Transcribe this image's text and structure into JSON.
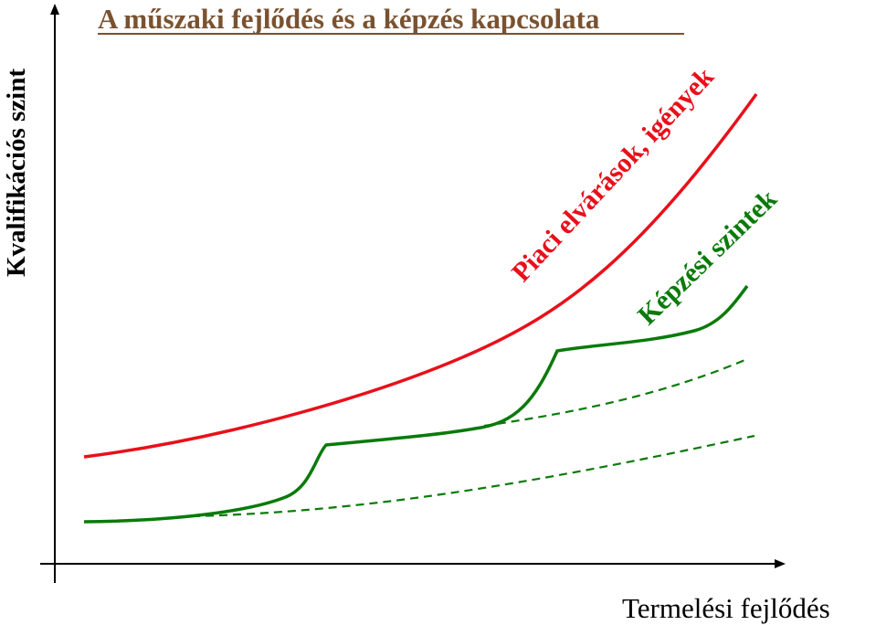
{
  "title": "A műszaki fejlődés és a képzés kapcsolata",
  "y_axis_label": "Kvalifikációs szint",
  "x_axis_label": "Termelési fejlődés",
  "curve_labels": {
    "market": "Piaci elvárások, igények",
    "training": "Képzési szintek"
  },
  "colors": {
    "title": "#7a5230",
    "market": "#e8101a",
    "training": "#0a7a0a",
    "axis": "#000000"
  }
}
